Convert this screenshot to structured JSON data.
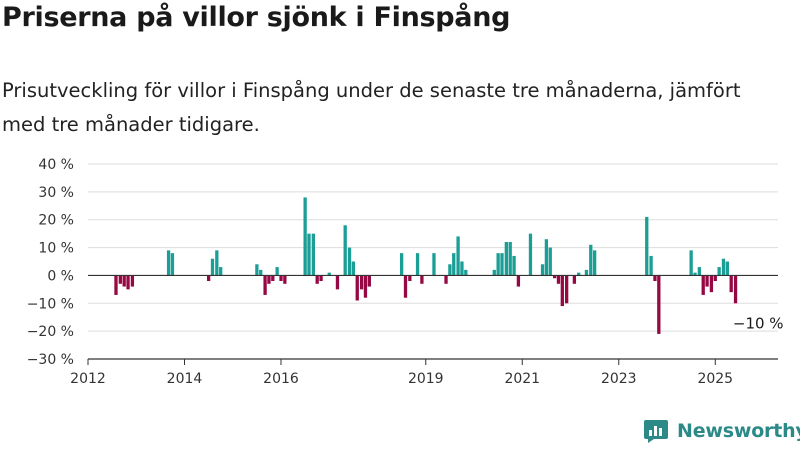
{
  "title": "Priserna på villor sjönk i Finspång",
  "subtitle": "Prisutveckling för villor i Finspång under de senaste tre månaderna, jämfört med tre månader tidigare.",
  "brand": {
    "name": "Newsworthy",
    "logo_icon": "newsworthy-logo-icon"
  },
  "colors": {
    "positive": "#1a9e96",
    "negative": "#960843",
    "grid": "#dddddd",
    "axis": "#333333"
  },
  "chart_data": {
    "type": "bar",
    "title": "Priserna på villor sjönk i Finspång",
    "subtitle": "Prisutveckling för villor i Finspång under de senaste tre månaderna, jämfört med tre månader tidigare.",
    "xlabel": "",
    "ylabel": "",
    "ylim": [
      -30,
      40
    ],
    "xlim": [
      2012.0,
      2026.3
    ],
    "yticks": [
      -30,
      -20,
      -10,
      0,
      10,
      20,
      30,
      40
    ],
    "ytick_labels": [
      "−30 %",
      "−20 %",
      "−10 %",
      "0 %",
      "10 %",
      "20 %",
      "30 %",
      "40 %"
    ],
    "xticks": [
      2012,
      2014,
      2016,
      2019,
      2021,
      2023,
      2025
    ],
    "xtick_labels": [
      "2012",
      "2014",
      "2016",
      "2019",
      "2021",
      "2023",
      "2025"
    ],
    "grid": true,
    "annotation": {
      "text": "−10 %",
      "x": 2025.6,
      "y": -10
    },
    "series": [
      {
        "data": [
          [
            2012.58,
            -7
          ],
          [
            2012.67,
            -3
          ],
          [
            2012.75,
            -4
          ],
          [
            2012.83,
            -5
          ],
          [
            2012.92,
            -4
          ],
          [
            2013.67,
            9
          ],
          [
            2013.75,
            8
          ],
          [
            2014.5,
            -2
          ],
          [
            2014.58,
            6
          ],
          [
            2014.67,
            9
          ],
          [
            2014.75,
            3
          ],
          [
            2015.5,
            4
          ],
          [
            2015.58,
            2
          ],
          [
            2015.67,
            -7
          ],
          [
            2015.75,
            -3
          ],
          [
            2015.83,
            -2
          ],
          [
            2015.92,
            3
          ],
          [
            2016.0,
            -2
          ],
          [
            2016.08,
            -3
          ],
          [
            2016.5,
            28
          ],
          [
            2016.58,
            15
          ],
          [
            2016.67,
            15
          ],
          [
            2016.75,
            -3
          ],
          [
            2016.83,
            -2
          ],
          [
            2017.0,
            1
          ],
          [
            2017.17,
            -5
          ],
          [
            2017.33,
            18
          ],
          [
            2017.42,
            10
          ],
          [
            2017.5,
            5
          ],
          [
            2017.58,
            -9
          ],
          [
            2017.67,
            -5
          ],
          [
            2017.75,
            -8
          ],
          [
            2017.83,
            -4
          ],
          [
            2018.5,
            8
          ],
          [
            2018.58,
            -8
          ],
          [
            2018.67,
            -2
          ],
          [
            2018.83,
            8
          ],
          [
            2018.92,
            -3
          ],
          [
            2019.17,
            8
          ],
          [
            2019.42,
            -3
          ],
          [
            2019.5,
            4
          ],
          [
            2019.58,
            8
          ],
          [
            2019.67,
            14
          ],
          [
            2019.75,
            5
          ],
          [
            2019.83,
            2
          ],
          [
            2020.42,
            2
          ],
          [
            2020.5,
            8
          ],
          [
            2020.58,
            8
          ],
          [
            2020.67,
            12
          ],
          [
            2020.75,
            12
          ],
          [
            2020.83,
            7
          ],
          [
            2020.92,
            -4
          ],
          [
            2021.17,
            15
          ],
          [
            2021.42,
            4
          ],
          [
            2021.5,
            13
          ],
          [
            2021.58,
            10
          ],
          [
            2021.67,
            -1
          ],
          [
            2021.75,
            -3
          ],
          [
            2021.83,
            -11
          ],
          [
            2021.92,
            -10
          ],
          [
            2022.08,
            -3
          ],
          [
            2022.17,
            1
          ],
          [
            2022.33,
            2
          ],
          [
            2022.42,
            11
          ],
          [
            2022.5,
            9
          ],
          [
            2023.58,
            21
          ],
          [
            2023.67,
            7
          ],
          [
            2023.75,
            -2
          ],
          [
            2023.83,
            -21
          ],
          [
            2024.5,
            9
          ],
          [
            2024.58,
            1
          ],
          [
            2024.67,
            3
          ],
          [
            2024.75,
            -7
          ],
          [
            2024.83,
            -4
          ],
          [
            2024.92,
            -6
          ],
          [
            2025.0,
            -2
          ],
          [
            2025.08,
            3
          ],
          [
            2025.17,
            6
          ],
          [
            2025.25,
            5
          ],
          [
            2025.33,
            -6
          ],
          [
            2025.42,
            -10
          ]
        ]
      }
    ]
  }
}
